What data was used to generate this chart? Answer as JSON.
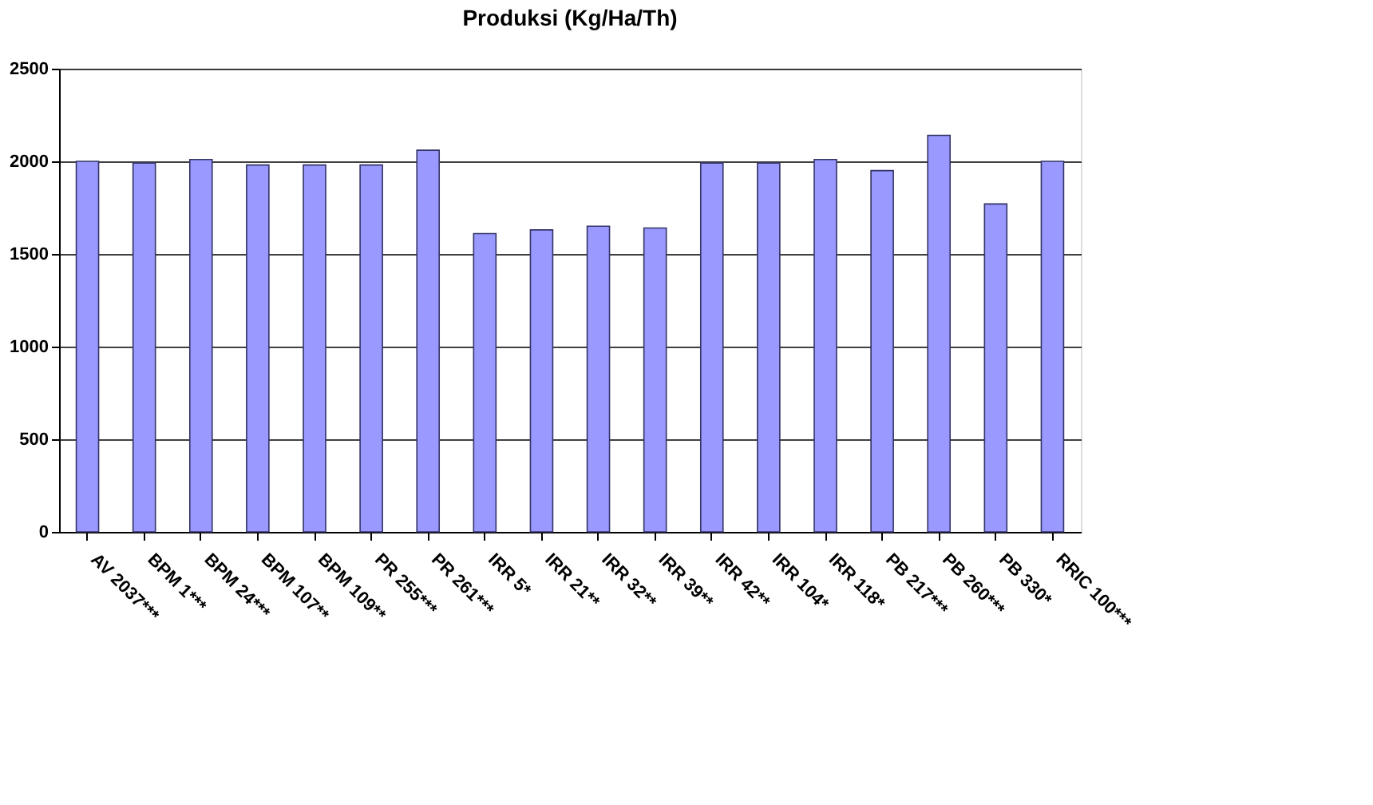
{
  "chart_data": {
    "type": "bar",
    "title": "Produksi (Kg/Ha/Th)",
    "categories": [
      "AV 2037***",
      "BPM 1***",
      "BPM 24***",
      "BPM 107**",
      "BPM 109**",
      "PR 255***",
      "PR 261***",
      "IRR 5*",
      "IRR 21**",
      "IRR 32**",
      "IRR 39**",
      "IRR 42**",
      "IRR 104*",
      "IRR 118*",
      "PB 217***",
      "PB 260***",
      "PB 330*",
      "RRIC 100***"
    ],
    "values": [
      2000,
      1990,
      2010,
      1980,
      1980,
      1980,
      2060,
      1610,
      1630,
      1650,
      1640,
      1990,
      1990,
      2010,
      1950,
      2140,
      1770,
      2000
    ],
    "color": "#9999ff",
    "ylim": [
      0,
      2500
    ],
    "yticks": [
      0,
      500,
      1000,
      1500,
      2000,
      2500
    ],
    "grid": "y"
  }
}
